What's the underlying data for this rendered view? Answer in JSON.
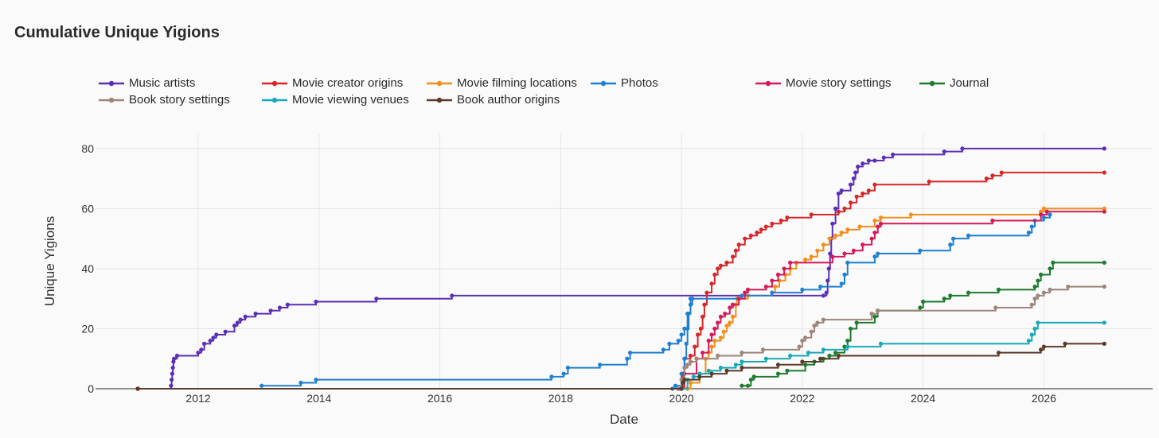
{
  "chart_data": {
    "type": "line",
    "title": "Cumulative Unique Yigions",
    "xlabel": "Date",
    "ylabel": "Unique Yigions",
    "xlim": [
      2010.3,
      2027.8
    ],
    "ylim": [
      0,
      85
    ],
    "xticks": [
      2012,
      2014,
      2016,
      2018,
      2020,
      2022,
      2024,
      2026
    ],
    "yticks": [
      0,
      20,
      40,
      60,
      80
    ],
    "grid": true,
    "legend_position": "top",
    "series": [
      {
        "name": "Music artists",
        "color": "#5b2fb5",
        "points": [
          [
            2011.0,
            0
          ],
          [
            2011.55,
            1
          ],
          [
            2011.56,
            3
          ],
          [
            2011.57,
            5
          ],
          [
            2011.58,
            7
          ],
          [
            2011.59,
            9
          ],
          [
            2011.6,
            10
          ],
          [
            2011.65,
            11
          ],
          [
            2012.0,
            12
          ],
          [
            2012.05,
            13
          ],
          [
            2012.1,
            15
          ],
          [
            2012.2,
            16
          ],
          [
            2012.25,
            17
          ],
          [
            2012.3,
            18
          ],
          [
            2012.45,
            19
          ],
          [
            2012.6,
            21
          ],
          [
            2012.65,
            22
          ],
          [
            2012.7,
            23
          ],
          [
            2012.78,
            24
          ],
          [
            2012.95,
            25
          ],
          [
            2013.2,
            26
          ],
          [
            2013.35,
            27
          ],
          [
            2013.48,
            28
          ],
          [
            2013.95,
            29
          ],
          [
            2014.95,
            30
          ],
          [
            2016.2,
            31
          ],
          [
            2022.35,
            31
          ],
          [
            2022.4,
            32
          ],
          [
            2022.42,
            36
          ],
          [
            2022.44,
            40
          ],
          [
            2022.46,
            45
          ],
          [
            2022.48,
            50
          ],
          [
            2022.5,
            55
          ],
          [
            2022.55,
            60
          ],
          [
            2022.6,
            65
          ],
          [
            2022.65,
            66
          ],
          [
            2022.8,
            68
          ],
          [
            2022.85,
            70
          ],
          [
            2022.88,
            72
          ],
          [
            2022.92,
            74
          ],
          [
            2023.0,
            75
          ],
          [
            2023.1,
            76
          ],
          [
            2023.2,
            76
          ],
          [
            2023.35,
            77
          ],
          [
            2023.5,
            78
          ],
          [
            2024.35,
            79
          ],
          [
            2024.65,
            80
          ],
          [
            2027.0,
            80
          ]
        ]
      },
      {
        "name": "Movie creator origins",
        "color": "#d62728",
        "points": [
          [
            2011.0,
            0
          ],
          [
            2020.0,
            0
          ],
          [
            2020.02,
            5
          ],
          [
            2020.05,
            10
          ],
          [
            2020.15,
            11
          ],
          [
            2020.22,
            14
          ],
          [
            2020.27,
            18
          ],
          [
            2020.32,
            20
          ],
          [
            2020.35,
            24
          ],
          [
            2020.38,
            28
          ],
          [
            2020.42,
            32
          ],
          [
            2020.5,
            35
          ],
          [
            2020.55,
            38
          ],
          [
            2020.6,
            40
          ],
          [
            2020.65,
            41
          ],
          [
            2020.75,
            42
          ],
          [
            2020.85,
            44
          ],
          [
            2020.9,
            46
          ],
          [
            2020.95,
            48
          ],
          [
            2021.05,
            50
          ],
          [
            2021.15,
            51
          ],
          [
            2021.25,
            52
          ],
          [
            2021.32,
            53
          ],
          [
            2021.4,
            54
          ],
          [
            2021.5,
            55
          ],
          [
            2021.65,
            56
          ],
          [
            2021.75,
            57
          ],
          [
            2022.15,
            58
          ],
          [
            2022.6,
            59
          ],
          [
            2022.7,
            60
          ],
          [
            2022.8,
            62
          ],
          [
            2022.9,
            64
          ],
          [
            2023.0,
            65
          ],
          [
            2023.1,
            66
          ],
          [
            2023.2,
            68
          ],
          [
            2024.1,
            69
          ],
          [
            2025.05,
            70
          ],
          [
            2025.15,
            71
          ],
          [
            2025.3,
            72
          ],
          [
            2027.0,
            72
          ]
        ]
      },
      {
        "name": "Movie filming locations",
        "color": "#f28e1c",
        "points": [
          [
            2011.0,
            0
          ],
          [
            2020.1,
            0
          ],
          [
            2020.15,
            2
          ],
          [
            2020.3,
            5
          ],
          [
            2020.4,
            10
          ],
          [
            2020.45,
            12
          ],
          [
            2020.5,
            14
          ],
          [
            2020.55,
            16
          ],
          [
            2020.65,
            17
          ],
          [
            2020.7,
            19
          ],
          [
            2020.75,
            21
          ],
          [
            2020.8,
            22
          ],
          [
            2020.85,
            24
          ],
          [
            2020.9,
            28
          ],
          [
            2020.92,
            30
          ],
          [
            2021.1,
            31
          ],
          [
            2021.5,
            32
          ],
          [
            2021.55,
            34
          ],
          [
            2021.62,
            36
          ],
          [
            2021.72,
            38
          ],
          [
            2021.8,
            40
          ],
          [
            2021.9,
            42
          ],
          [
            2022.05,
            43
          ],
          [
            2022.15,
            44
          ],
          [
            2022.25,
            46
          ],
          [
            2022.35,
            48
          ],
          [
            2022.45,
            50
          ],
          [
            2022.55,
            51
          ],
          [
            2022.65,
            52
          ],
          [
            2022.75,
            53
          ],
          [
            2022.95,
            54
          ],
          [
            2023.2,
            56
          ],
          [
            2023.3,
            57
          ],
          [
            2023.8,
            58
          ],
          [
            2025.95,
            59
          ],
          [
            2026.0,
            60
          ],
          [
            2027.0,
            60
          ]
        ]
      },
      {
        "name": "Photos",
        "color": "#1f7fd0",
        "points": [
          [
            2019.85,
            0
          ],
          [
            2019.9,
            1
          ],
          [
            2020.0,
            5
          ],
          [
            2020.05,
            10
          ],
          [
            2020.08,
            15
          ],
          [
            2020.1,
            20
          ],
          [
            2020.12,
            25
          ],
          [
            2020.15,
            28
          ],
          [
            2020.18,
            30
          ],
          [
            2021.0,
            31
          ],
          [
            2021.5,
            32
          ],
          [
            2022.0,
            33
          ],
          [
            2022.3,
            34
          ],
          [
            2022.65,
            35
          ],
          [
            2022.7,
            38
          ],
          [
            2022.75,
            42
          ],
          [
            2023.2,
            44
          ],
          [
            2023.25,
            45
          ],
          [
            2023.95,
            46
          ],
          [
            2024.45,
            48
          ],
          [
            2024.5,
            50
          ],
          [
            2024.75,
            51
          ],
          [
            2025.75,
            52
          ],
          [
            2025.8,
            54
          ],
          [
            2025.85,
            56
          ],
          [
            2026.0,
            57
          ],
          [
            2026.1,
            58
          ]
        ]
      },
      {
        "name": "Photos",
        "color": "#1f7fd0",
        "points": [
          [
            2013.05,
            1
          ],
          [
            2013.7,
            2
          ],
          [
            2013.95,
            3
          ],
          [
            2017.85,
            4
          ],
          [
            2018.05,
            5
          ],
          [
            2018.12,
            7
          ],
          [
            2018.65,
            8
          ],
          [
            2019.1,
            10
          ],
          [
            2019.15,
            12
          ],
          [
            2019.7,
            13
          ],
          [
            2019.8,
            15
          ],
          [
            2019.95,
            16
          ],
          [
            2020.0,
            18
          ],
          [
            2020.05,
            20
          ],
          [
            2020.1,
            25
          ],
          [
            2020.15,
            30
          ]
        ]
      },
      {
        "name": "Movie story settings",
        "color": "#d41a5a",
        "points": [
          [
            2011.0,
            0
          ],
          [
            2020.0,
            0
          ],
          [
            2020.05,
            5
          ],
          [
            2020.25,
            10
          ],
          [
            2020.35,
            12
          ],
          [
            2020.45,
            16
          ],
          [
            2020.5,
            18
          ],
          [
            2020.55,
            20
          ],
          [
            2020.6,
            22
          ],
          [
            2020.65,
            24
          ],
          [
            2020.72,
            25
          ],
          [
            2020.8,
            27
          ],
          [
            2020.85,
            28
          ],
          [
            2020.95,
            30
          ],
          [
            2021.05,
            32
          ],
          [
            2021.1,
            33
          ],
          [
            2021.4,
            34
          ],
          [
            2021.5,
            36
          ],
          [
            2021.6,
            38
          ],
          [
            2021.7,
            40
          ],
          [
            2021.8,
            42
          ],
          [
            2022.5,
            44
          ],
          [
            2022.7,
            45
          ],
          [
            2022.85,
            46
          ],
          [
            2023.0,
            48
          ],
          [
            2023.15,
            50
          ],
          [
            2023.2,
            52
          ],
          [
            2023.25,
            54
          ],
          [
            2023.3,
            55
          ],
          [
            2025.15,
            56
          ],
          [
            2025.95,
            58
          ],
          [
            2026.05,
            59
          ],
          [
            2027.0,
            59
          ]
        ]
      },
      {
        "name": "Journal",
        "color": "#1e7a2e",
        "points": [
          [
            2021.0,
            1
          ],
          [
            2021.1,
            1
          ],
          [
            2021.15,
            3
          ],
          [
            2021.2,
            4
          ],
          [
            2021.6,
            5
          ],
          [
            2021.75,
            6
          ],
          [
            2022.05,
            8
          ],
          [
            2022.2,
            9
          ],
          [
            2022.35,
            10
          ],
          [
            2022.45,
            11
          ],
          [
            2022.55,
            12
          ],
          [
            2022.7,
            14
          ],
          [
            2022.75,
            16
          ],
          [
            2022.8,
            20
          ],
          [
            2022.9,
            22
          ],
          [
            2023.2,
            24
          ],
          [
            2023.25,
            26
          ],
          [
            2023.95,
            27
          ],
          [
            2024.0,
            29
          ],
          [
            2024.35,
            30
          ],
          [
            2024.45,
            31
          ],
          [
            2024.75,
            32
          ],
          [
            2025.25,
            33
          ],
          [
            2025.85,
            34
          ],
          [
            2025.9,
            36
          ],
          [
            2025.95,
            38
          ],
          [
            2026.1,
            40
          ],
          [
            2026.15,
            42
          ],
          [
            2027.0,
            42
          ]
        ]
      },
      {
        "name": "Book story settings",
        "color": "#9c857a",
        "points": [
          [
            2019.95,
            0
          ],
          [
            2020.0,
            3
          ],
          [
            2020.05,
            7
          ],
          [
            2020.1,
            8
          ],
          [
            2020.15,
            9
          ],
          [
            2020.25,
            10
          ],
          [
            2020.6,
            11
          ],
          [
            2021.0,
            12
          ],
          [
            2021.35,
            13
          ],
          [
            2021.95,
            14
          ],
          [
            2022.0,
            16
          ],
          [
            2022.05,
            17
          ],
          [
            2022.15,
            19
          ],
          [
            2022.2,
            21
          ],
          [
            2022.25,
            22
          ],
          [
            2022.35,
            23
          ],
          [
            2023.15,
            25
          ],
          [
            2023.25,
            26
          ],
          [
            2025.2,
            27
          ],
          [
            2025.8,
            28
          ],
          [
            2025.85,
            30
          ],
          [
            2025.9,
            31
          ],
          [
            2026.0,
            32
          ],
          [
            2026.1,
            33
          ],
          [
            2026.4,
            34
          ],
          [
            2027.0,
            34
          ]
        ]
      },
      {
        "name": "Movie viewing venues",
        "color": "#17a9b8",
        "points": [
          [
            2020.0,
            0
          ],
          [
            2020.1,
            3
          ],
          [
            2020.2,
            4
          ],
          [
            2020.3,
            5
          ],
          [
            2020.45,
            6
          ],
          [
            2020.65,
            7
          ],
          [
            2020.9,
            8
          ],
          [
            2021.0,
            9
          ],
          [
            2021.4,
            10
          ],
          [
            2021.8,
            11
          ],
          [
            2022.1,
            12
          ],
          [
            2022.35,
            13
          ],
          [
            2022.75,
            14
          ],
          [
            2023.3,
            15
          ],
          [
            2025.75,
            16
          ],
          [
            2025.8,
            18
          ],
          [
            2025.85,
            20
          ],
          [
            2025.9,
            22
          ],
          [
            2027.0,
            22
          ]
        ]
      },
      {
        "name": "Book author origins",
        "color": "#5c3a2a",
        "points": [
          [
            2011.0,
            0
          ],
          [
            2020.0,
            0
          ],
          [
            2020.02,
            2
          ],
          [
            2020.05,
            3
          ],
          [
            2020.3,
            4
          ],
          [
            2020.5,
            5
          ],
          [
            2020.75,
            6
          ],
          [
            2021.0,
            7
          ],
          [
            2021.6,
            8
          ],
          [
            2022.0,
            9
          ],
          [
            2022.3,
            10
          ],
          [
            2022.6,
            11
          ],
          [
            2025.25,
            12
          ],
          [
            2025.95,
            13
          ],
          [
            2026.0,
            14
          ],
          [
            2026.35,
            15
          ],
          [
            2027.0,
            15
          ]
        ]
      }
    ],
    "legend": [
      {
        "label": "Music artists",
        "color": "#5b2fb5"
      },
      {
        "label": "Movie creator origins",
        "color": "#d62728"
      },
      {
        "label": "Movie filming locations",
        "color": "#f28e1c"
      },
      {
        "label": "Photos",
        "color": "#1f7fd0"
      },
      {
        "label": "Movie story settings",
        "color": "#d41a5a"
      },
      {
        "label": "Journal",
        "color": "#1e7a2e"
      },
      {
        "label": "Book story settings",
        "color": "#9c857a"
      },
      {
        "label": "Movie viewing venues",
        "color": "#17a9b8"
      },
      {
        "label": "Book author origins",
        "color": "#5c3a2a"
      }
    ]
  }
}
